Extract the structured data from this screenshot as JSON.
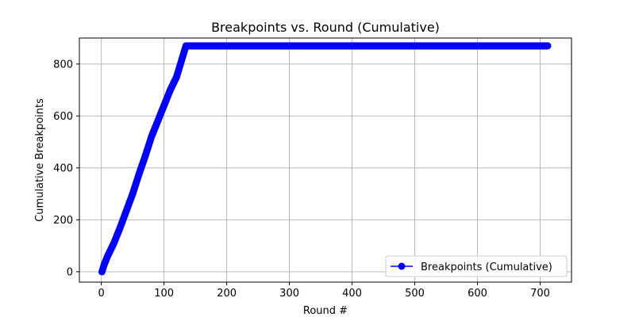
{
  "chart_data": {
    "type": "line",
    "title": "Breakpoints vs. Round (Cumulative)",
    "xlabel": "Round #",
    "ylabel": "Cumulative Breakpoints",
    "xlim": [
      -35,
      750
    ],
    "ylim": [
      -40,
      900
    ],
    "xticks": [
      0,
      100,
      200,
      300,
      400,
      500,
      600,
      700
    ],
    "yticks": [
      0,
      200,
      400,
      600,
      800
    ],
    "grid": true,
    "legend": "lower-right",
    "series": [
      {
        "name": "Breakpoints (Cumulative)",
        "color": "#0000ff",
        "marker": "circle",
        "x_start": 1,
        "x_end": 712,
        "x_step": 1,
        "knots": [
          [
            1,
            0
          ],
          [
            5,
            30
          ],
          [
            10,
            60
          ],
          [
            20,
            110
          ],
          [
            30,
            170
          ],
          [
            40,
            235
          ],
          [
            50,
            300
          ],
          [
            60,
            375
          ],
          [
            70,
            445
          ],
          [
            80,
            520
          ],
          [
            90,
            580
          ],
          [
            100,
            640
          ],
          [
            110,
            700
          ],
          [
            120,
            750
          ],
          [
            130,
            830
          ],
          [
            135,
            870
          ],
          [
            712,
            870
          ]
        ]
      }
    ]
  }
}
